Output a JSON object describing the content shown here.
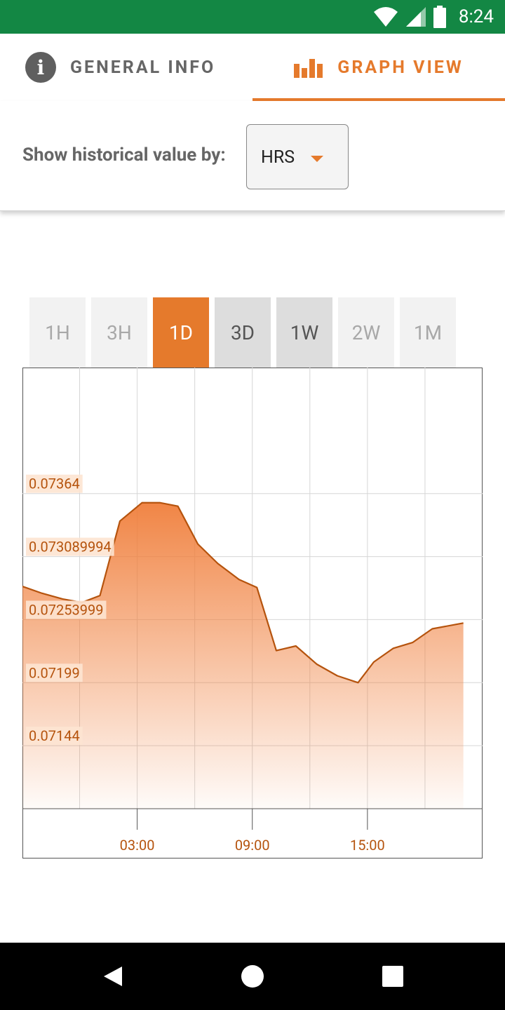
{
  "status_bar": {
    "time": "8:24",
    "icons": [
      "wifi-icon",
      "cell-signal-icon",
      "battery-icon"
    ],
    "bg_color": "#138744"
  },
  "tabs": {
    "general_info": "GENERAL INFO",
    "graph_view": "GRAPH VIEW",
    "active": "graph_view",
    "accent_color": "#e57a2c"
  },
  "filter": {
    "label": "Show historical value by:",
    "selected": "HRS"
  },
  "ranges": {
    "items": [
      {
        "label": "1H",
        "state": "disabled"
      },
      {
        "label": "3H",
        "state": "disabled"
      },
      {
        "label": "1D",
        "state": "active"
      },
      {
        "label": "3D",
        "state": "enabled"
      },
      {
        "label": "1W",
        "state": "enabled"
      },
      {
        "label": "2W",
        "state": "disabled"
      },
      {
        "label": "1M",
        "state": "disabled"
      }
    ]
  },
  "chart_data": {
    "type": "area",
    "title": "",
    "xlabel": "",
    "ylabel": "",
    "y_tick_labels": [
      "0.07364",
      "0.073089994",
      "0.07253999",
      "0.07199",
      "0.07144"
    ],
    "y_ticks": [
      0.07364,
      0.073089994,
      0.07253999,
      0.07199,
      0.07144
    ],
    "x_tick_labels": [
      "03:00",
      "09:00",
      "15:00"
    ],
    "x_ticks": [
      3,
      9,
      15
    ],
    "xlim": [
      -2.98,
      21
    ],
    "ylim": [
      0.07089,
      0.07474
    ],
    "grid": true,
    "line_color": "#b5530d",
    "fill_color": "#f07f3c",
    "x": [
      -2.98,
      -1.96,
      -0.88,
      0.12,
      1.06,
      2.1,
      3.25,
      4.2,
      5.12,
      6.16,
      7.2,
      8.31,
      9.24,
      10.25,
      11.27,
      12.37,
      13.43,
      14.51,
      15.33,
      16.35,
      17.35,
      18.38,
      20.0
    ],
    "values": [
      0.07283,
      0.07277,
      0.07272,
      0.07269,
      0.07275,
      0.0734,
      0.07356,
      0.07356,
      0.07353,
      0.0732,
      0.07303,
      0.07289,
      0.07282,
      0.07227,
      0.07231,
      0.07215,
      0.07205,
      0.07199,
      0.07217,
      0.07229,
      0.07234,
      0.07246,
      0.07251
    ]
  }
}
